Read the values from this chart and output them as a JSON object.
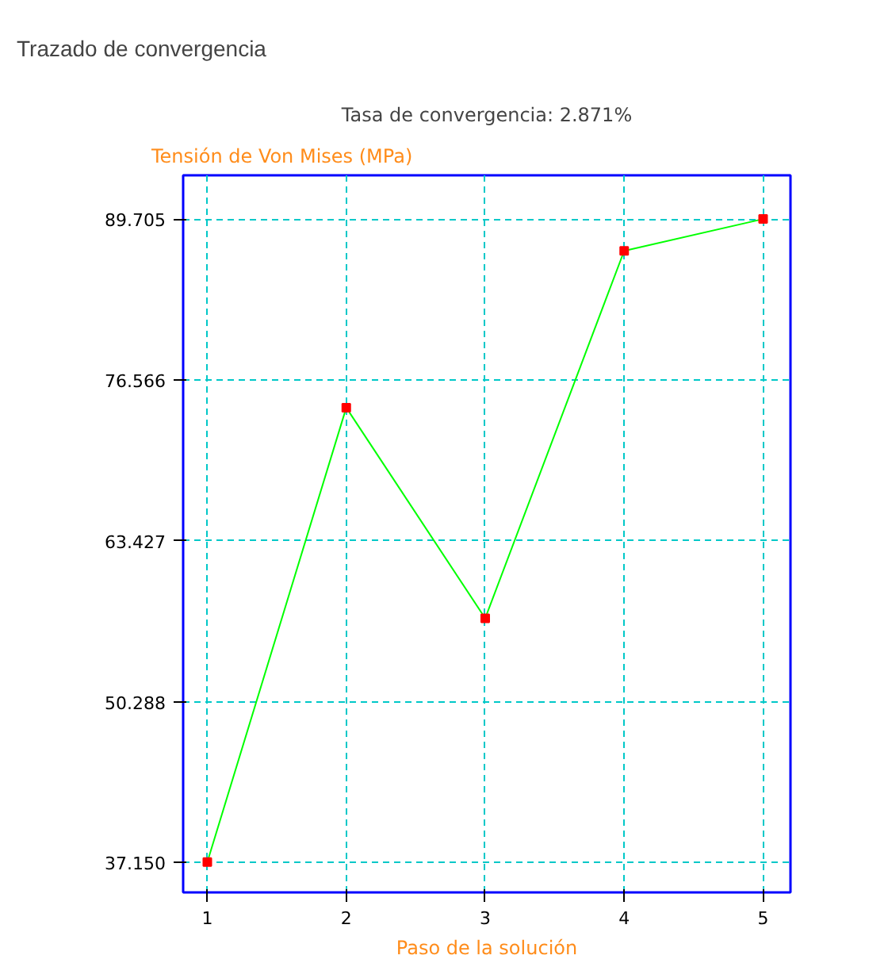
{
  "chart_data": {
    "type": "line",
    "title": "Tasa de convergencia: 2.871%",
    "annotations": [
      "Trazado de convergencia"
    ],
    "xlabel": "Paso de la solución",
    "ylabel": "Tensión de Von Mises (MPa)",
    "x": [
      1,
      2,
      3,
      4,
      5
    ],
    "series": [
      {
        "color": "#00ff00",
        "values": [
          37.2,
          74.3,
          57.1,
          87.1,
          89.7
        ]
      }
    ],
    "marker": "square",
    "line_style": "solid",
    "grid": true,
    "xlim": [
      0.826,
      5.197
    ],
    "xticks": [
      1,
      2,
      3,
      4,
      5
    ],
    "ylim": [
      34.72,
      93.27
    ],
    "yticks": [
      {
        "value": 37.15,
        "label": "37.150"
      },
      50.288,
      63.427,
      76.566,
      89.705
    ]
  }
}
